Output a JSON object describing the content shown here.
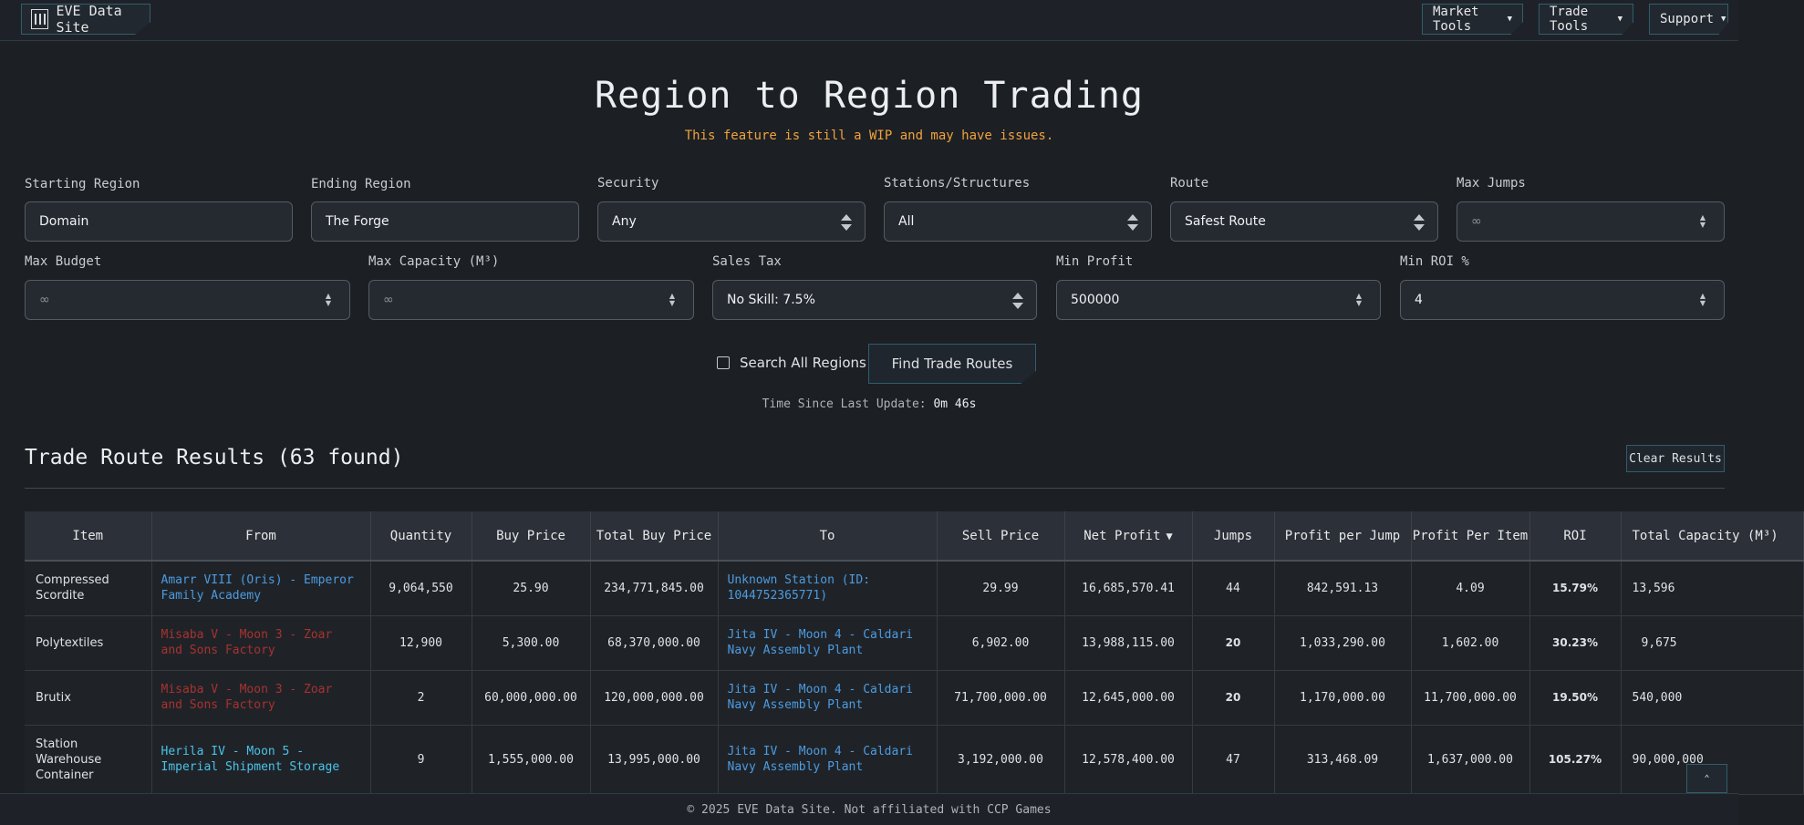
{
  "nav": {
    "brand": "EVE Data Site",
    "market_tools": "Market Tools",
    "trade_tools": "Trade Tools",
    "support": "Support"
  },
  "header": {
    "title": "Region to Region Trading",
    "wip_note": "This feature is still a WIP and may have issues."
  },
  "form": {
    "starting_region": {
      "label": "Starting Region",
      "value": "Domain"
    },
    "ending_region": {
      "label": "Ending Region",
      "value": "The Forge"
    },
    "security": {
      "label": "Security",
      "value": "Any"
    },
    "stations": {
      "label": "Stations/Structures",
      "value": "All"
    },
    "route": {
      "label": "Route",
      "value": "Safest Route"
    },
    "max_jumps": {
      "label": "Max Jumps",
      "placeholder": "∞"
    },
    "max_budget": {
      "label": "Max Budget",
      "placeholder": "∞"
    },
    "max_capacity": {
      "label": "Max Capacity (M³)",
      "placeholder": "∞"
    },
    "sales_tax": {
      "label": "Sales Tax",
      "value": "No Skill: 7.5%"
    },
    "min_profit": {
      "label": "Min Profit",
      "value": "500000"
    },
    "min_roi": {
      "label": "Min ROI %",
      "value": "4"
    },
    "search_all_regions": "Search All Regions",
    "find_button": "Find Trade Routes",
    "update_label": "Time Since Last Update:",
    "update_value": "0m 46s"
  },
  "results": {
    "title": "Trade Route Results (63 found)",
    "clear_button": "Clear Results",
    "columns": [
      "Item",
      "From",
      "Quantity",
      "Buy Price",
      "Total Buy Price",
      "To",
      "Sell Price",
      "Net Profit",
      "Jumps",
      "Profit per Jump",
      "Profit Per Item",
      "ROI",
      "Total Capacity (M³)"
    ],
    "rows": [
      {
        "item": "Compressed Scordite",
        "from": "Amarr VIII (Oris) - Emperor Family Academy",
        "quantity": "9,064,550",
        "buy_price": "25.90",
        "total_buy": "234,771,845.00",
        "to": "Unknown Station (ID: 1044752365771)",
        "sell_price": "29.99",
        "net_profit": "16,685,570.41",
        "jumps": "44",
        "profit_per_jump": "842,591.13",
        "profit_per_item": "4.09",
        "roi": "15.79%",
        "capacity": "13,596"
      },
      {
        "item": "Polytextiles",
        "from": "Misaba V - Moon 3 - Zoar and Sons Factory",
        "quantity": "12,900",
        "buy_price": "5,300.00",
        "total_buy": "68,370,000.00",
        "to": "Jita IV - Moon 4 - Caldari Navy Assembly Plant",
        "sell_price": "6,902.00",
        "net_profit": "13,988,115.00",
        "jumps": "20",
        "profit_per_jump": "1,033,290.00",
        "profit_per_item": "1,602.00",
        "roi": "30.23%",
        "capacity": "9,675"
      },
      {
        "item": "Brutix",
        "from": "Misaba V - Moon 3 - Zoar and Sons Factory",
        "quantity": "2",
        "buy_price": "60,000,000.00",
        "total_buy": "120,000,000.00",
        "to": "Jita IV - Moon 4 - Caldari Navy Assembly Plant",
        "sell_price": "71,700,000.00",
        "net_profit": "12,645,000.00",
        "jumps": "20",
        "profit_per_jump": "1,170,000.00",
        "profit_per_item": "11,700,000.00",
        "roi": "19.50%",
        "capacity": "540,000"
      },
      {
        "item": "Station Warehouse Container",
        "from": "Herila IV - Moon 5 - Imperial Shipment Storage",
        "quantity": "9",
        "buy_price": "1,555,000.00",
        "total_buy": "13,995,000.00",
        "to": "Jita IV - Moon 4 - Caldari Navy Assembly Plant",
        "sell_price": "3,192,000.00",
        "net_profit": "12,578,400.00",
        "jumps": "47",
        "profit_per_jump": "313,468.09",
        "profit_per_item": "1,637,000.00",
        "roi": "105.27%",
        "capacity": "90,000,000"
      }
    ]
  },
  "footer": {
    "text": "© 2025 EVE Data Site. Not affiliated with CCP Games",
    "scroll_top": "⌃"
  },
  "colors": {
    "background": "#1c1f24",
    "accent_border": "#2f5d6c",
    "warning": "#f0a23a",
    "link_blue": "#4d9be0",
    "link_red": "#a8322e",
    "link_cyan": "#4ac2e8"
  },
  "icons": {
    "brand": "bars-logo-icon",
    "nav_caret": "caret-down-icon",
    "select": "select-arrows-icon",
    "sort": "sort-desc-icon",
    "scroll_top": "chevron-up-icon"
  }
}
